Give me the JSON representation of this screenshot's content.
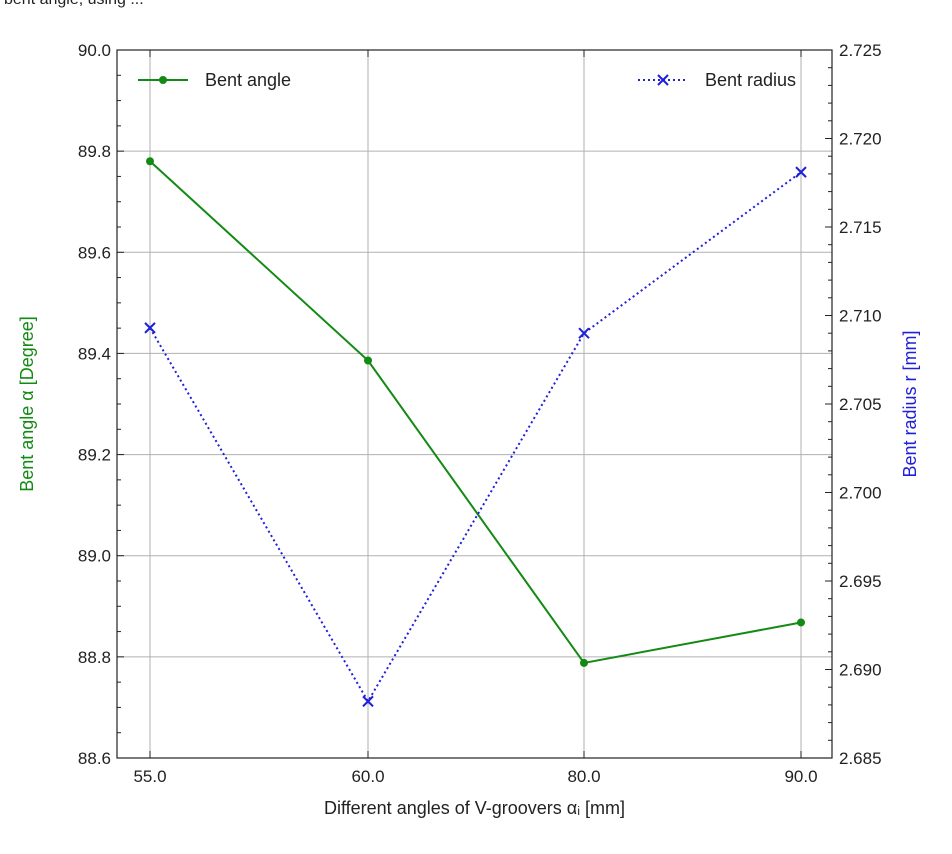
{
  "header_text": "bent angle, using ...",
  "chart_data": {
    "type": "line",
    "title": "",
    "categories": [
      "55.0",
      "60.0",
      "80.0",
      "90.0"
    ],
    "xlabel": "Different angles of V-groovers αᵢ [mm]",
    "ylabel": "Bent angle α [Degree]",
    "y2label": "Bent radius r [mm]",
    "ylim": [
      88.6,
      90.0
    ],
    "y2lim": [
      2.685,
      2.725
    ],
    "yticks": [
      "88.6",
      "88.8",
      "89.0",
      "89.2",
      "89.4",
      "89.6",
      "89.8",
      "90.0"
    ],
    "y2ticks": [
      "2.685",
      "2.690",
      "2.695",
      "2.700",
      "2.705",
      "2.710",
      "2.715",
      "2.720",
      "2.725"
    ],
    "grid": true,
    "series": [
      {
        "name": "Bent angle",
        "axis": "left",
        "values": [
          89.78,
          89.386,
          88.788,
          88.868
        ],
        "color": "#138a13",
        "line_style": "solid",
        "marker": "circle",
        "legend_position": "top-left"
      },
      {
        "name": "Bent radius",
        "axis": "right",
        "values": [
          2.7093,
          2.6882,
          2.709,
          2.7181
        ],
        "color": "#1f1fdc",
        "line_style": "dotted",
        "marker": "x",
        "legend_position": "top-right"
      }
    ],
    "colors": {
      "left_axis_label": "#138a13",
      "right_axis_label": "#1f1fdc",
      "grid": "#b0b0b0"
    }
  }
}
